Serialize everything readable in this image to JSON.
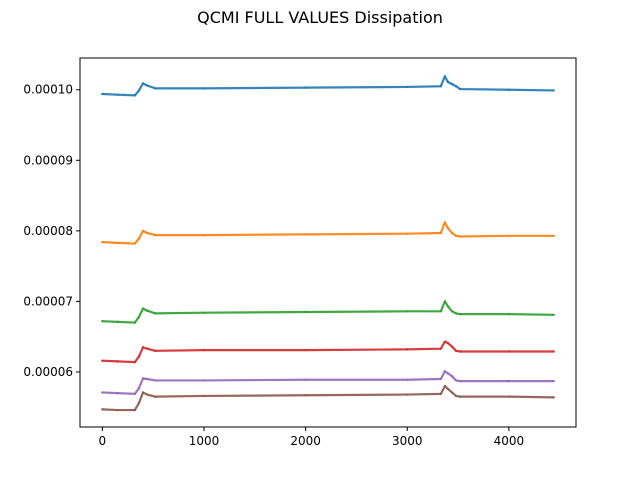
{
  "chart_data": {
    "type": "scatter",
    "title": "QCMI FULL VALUES Dissipation",
    "xlabel": "",
    "ylabel": "",
    "xlim": [
      -220,
      4660
    ],
    "ylim": [
      5.22e-05,
      0.0001045
    ],
    "grid": false,
    "legend": "none",
    "x_ticks": [
      0,
      1000,
      2000,
      3000,
      4000
    ],
    "x_tick_labels": [
      "0",
      "1000",
      "2000",
      "3000",
      "4000"
    ],
    "y_ticks": [
      6e-05,
      7e-05,
      8e-05,
      9e-05,
      0.0001
    ],
    "y_tick_labels": [
      "0.00006",
      "0.00007",
      "0.00008",
      "0.00009",
      "0.00010"
    ],
    "series": [
      {
        "color": "#1f77b4",
        "x": [
          0,
          150,
          320,
          360,
          400,
          440,
          520,
          1000,
          2000,
          3000,
          3330,
          3370,
          3400,
          3440,
          3480,
          3520,
          4000,
          4440
        ],
        "values": [
          9.94e-05,
          9.93e-05,
          9.92e-05,
          9.99e-05,
          0.0001009,
          0.0001006,
          0.0001002,
          0.0001002,
          0.0001003,
          0.0001004,
          0.0001005,
          0.0001019,
          0.0001011,
          0.0001008,
          0.0001005,
          0.0001001,
          0.0001,
          9.99e-05
        ]
      },
      {
        "color": "#ff7f0e",
        "x": [
          0,
          150,
          320,
          360,
          400,
          440,
          520,
          1000,
          2000,
          3000,
          3330,
          3370,
          3400,
          3440,
          3480,
          3520,
          4000,
          4440
        ],
        "values": [
          7.84e-05,
          7.83e-05,
          7.82e-05,
          7.89e-05,
          8e-05,
          7.97e-05,
          7.94e-05,
          7.94e-05,
          7.95e-05,
          7.96e-05,
          7.97e-05,
          8.12e-05,
          8.04e-05,
          7.97e-05,
          7.93e-05,
          7.92e-05,
          7.93e-05,
          7.93e-05
        ]
      },
      {
        "color": "#2ca02c",
        "x": [
          0,
          150,
          320,
          360,
          400,
          440,
          520,
          1000,
          2000,
          3000,
          3330,
          3370,
          3400,
          3440,
          3480,
          3520,
          4000,
          4440
        ],
        "values": [
          6.72e-05,
          6.71e-05,
          6.7e-05,
          6.78e-05,
          6.9e-05,
          6.87e-05,
          6.83e-05,
          6.84e-05,
          6.85e-05,
          6.86e-05,
          6.86e-05,
          7e-05,
          6.93e-05,
          6.86e-05,
          6.83e-05,
          6.82e-05,
          6.82e-05,
          6.81e-05
        ]
      },
      {
        "color": "#d62728",
        "x": [
          0,
          150,
          320,
          360,
          400,
          440,
          520,
          1000,
          2000,
          3000,
          3330,
          3370,
          3400,
          3440,
          3480,
          3520,
          4000,
          4440
        ],
        "values": [
          6.16e-05,
          6.15e-05,
          6.14e-05,
          6.22e-05,
          6.35e-05,
          6.33e-05,
          6.3e-05,
          6.31e-05,
          6.31e-05,
          6.32e-05,
          6.33e-05,
          6.43e-05,
          6.41e-05,
          6.36e-05,
          6.3e-05,
          6.29e-05,
          6.29e-05,
          6.29e-05
        ]
      },
      {
        "color": "#9467bd",
        "x": [
          0,
          150,
          320,
          360,
          400,
          440,
          520,
          1000,
          2000,
          3000,
          3330,
          3370,
          3400,
          3440,
          3480,
          3520,
          4000,
          4440
        ],
        "values": [
          5.71e-05,
          5.7e-05,
          5.69e-05,
          5.77e-05,
          5.91e-05,
          5.9e-05,
          5.88e-05,
          5.88e-05,
          5.89e-05,
          5.89e-05,
          5.9e-05,
          6.01e-05,
          5.98e-05,
          5.94e-05,
          5.88e-05,
          5.87e-05,
          5.87e-05,
          5.87e-05
        ]
      },
      {
        "color": "#8c564b",
        "x": [
          0,
          150,
          320,
          360,
          400,
          440,
          520,
          1000,
          2000,
          3000,
          3330,
          3370,
          3400,
          3440,
          3480,
          3520,
          4000,
          4440
        ],
        "values": [
          5.47e-05,
          5.46e-05,
          5.46e-05,
          5.56e-05,
          5.71e-05,
          5.68e-05,
          5.65e-05,
          5.66e-05,
          5.67e-05,
          5.68e-05,
          5.69e-05,
          5.8e-05,
          5.76e-05,
          5.71e-05,
          5.66e-05,
          5.65e-05,
          5.65e-05,
          5.64e-05
        ]
      }
    ]
  }
}
